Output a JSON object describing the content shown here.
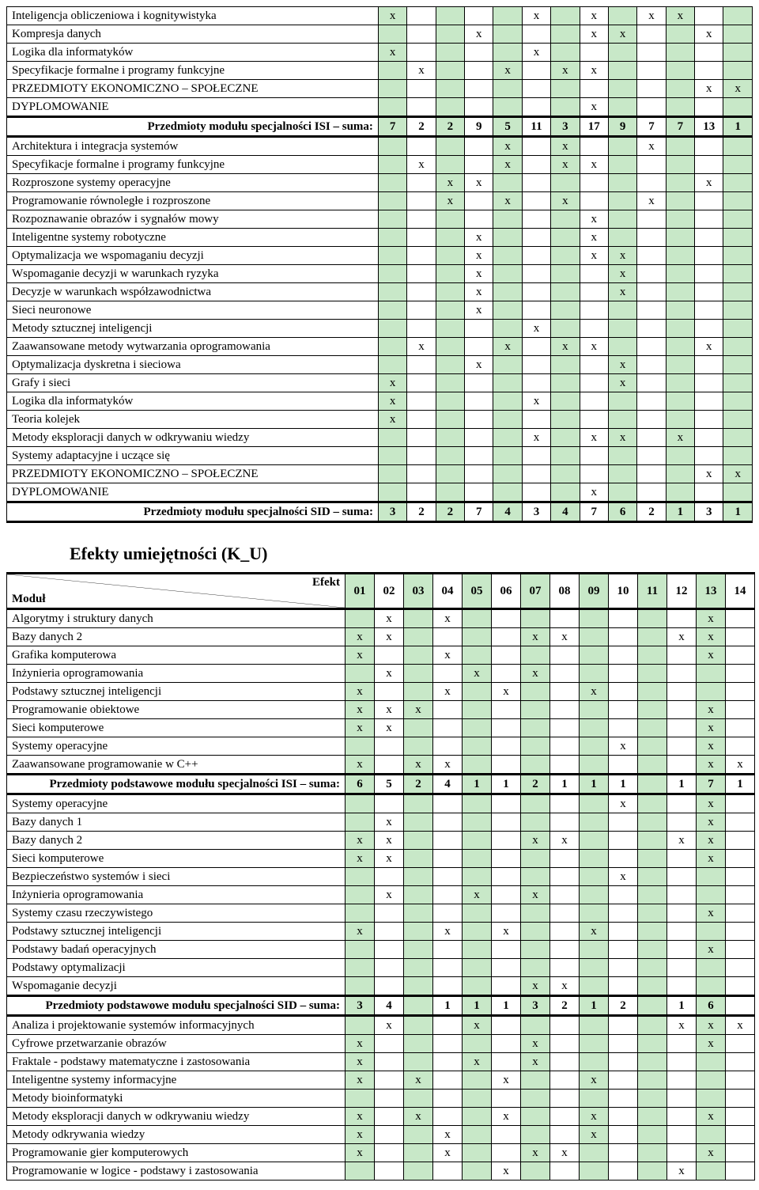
{
  "mark": "x",
  "colors": {
    "alt": "#c8e8c8",
    "bg": "#ffffff",
    "border": "#000000"
  },
  "section_title": "Efekty umiejętności (K_U)",
  "header2": {
    "top_right": "Efekt",
    "bottom_left": "Moduł",
    "cols": [
      "01",
      "02",
      "03",
      "04",
      "05",
      "06",
      "07",
      "08",
      "09",
      "10",
      "11",
      "12",
      "13",
      "14"
    ]
  },
  "table1": {
    "rows": [
      {
        "label": "Inteligencja obliczeniowa i kognitywistyka",
        "marks": [
          1,
          0,
          0,
          0,
          0,
          1,
          0,
          1,
          0,
          1,
          1,
          0,
          0
        ]
      },
      {
        "label": "Kompresja danych",
        "marks": [
          0,
          0,
          0,
          1,
          0,
          0,
          0,
          1,
          1,
          0,
          0,
          1,
          0
        ]
      },
      {
        "label": "Logika dla informatyków",
        "marks": [
          1,
          0,
          0,
          0,
          0,
          1,
          0,
          0,
          0,
          0,
          0,
          0,
          0
        ]
      },
      {
        "label": "Specyfikacje formalne i programy funkcyjne",
        "marks": [
          0,
          1,
          0,
          0,
          1,
          0,
          1,
          1,
          0,
          0,
          0,
          0,
          0
        ]
      },
      {
        "label": "PRZEDMIOTY EKONOMICZNO – SPOŁECZNE",
        "marks": [
          0,
          0,
          0,
          0,
          0,
          0,
          0,
          0,
          0,
          0,
          0,
          1,
          1
        ]
      },
      {
        "label": "DYPLOMOWANIE",
        "marks": [
          0,
          0,
          0,
          0,
          0,
          0,
          0,
          1,
          0,
          0,
          0,
          0,
          0
        ]
      }
    ],
    "sum": {
      "label": "Przedmioty modułu specjalności ISI – suma:",
      "values": [
        "7",
        "2",
        "2",
        "9",
        "5",
        "11",
        "3",
        "17",
        "9",
        "7",
        "7",
        "13",
        "1"
      ]
    },
    "rows2": [
      {
        "label": "Architektura i integracja systemów",
        "marks": [
          0,
          0,
          0,
          0,
          1,
          0,
          1,
          0,
          0,
          1,
          0,
          0,
          0
        ]
      },
      {
        "label": "Specyfikacje formalne i programy funkcyjne",
        "marks": [
          0,
          1,
          0,
          0,
          1,
          0,
          1,
          1,
          0,
          0,
          0,
          0,
          0
        ]
      },
      {
        "label": "Rozproszone systemy operacyjne",
        "marks": [
          0,
          0,
          1,
          1,
          0,
          0,
          0,
          0,
          0,
          0,
          0,
          1,
          0
        ]
      },
      {
        "label": "Programowanie równoległe i rozproszone",
        "marks": [
          0,
          0,
          1,
          0,
          1,
          0,
          1,
          0,
          0,
          1,
          0,
          0,
          0
        ]
      },
      {
        "label": "Rozpoznawanie obrazów i sygnałów mowy",
        "marks": [
          0,
          0,
          0,
          0,
          0,
          0,
          0,
          1,
          0,
          0,
          0,
          0,
          0
        ]
      },
      {
        "label": "Inteligentne systemy robotyczne",
        "marks": [
          0,
          0,
          0,
          1,
          0,
          0,
          0,
          1,
          0,
          0,
          0,
          0,
          0
        ]
      },
      {
        "label": "Optymalizacja we wspomaganiu decyzji",
        "marks": [
          0,
          0,
          0,
          1,
          0,
          0,
          0,
          1,
          1,
          0,
          0,
          0,
          0
        ]
      },
      {
        "label": "Wspomaganie decyzji w warunkach ryzyka",
        "marks": [
          0,
          0,
          0,
          1,
          0,
          0,
          0,
          0,
          1,
          0,
          0,
          0,
          0
        ]
      },
      {
        "label": "Decyzje w warunkach współzawodnictwa",
        "marks": [
          0,
          0,
          0,
          1,
          0,
          0,
          0,
          0,
          1,
          0,
          0,
          0,
          0
        ]
      },
      {
        "label": "Sieci neuronowe",
        "marks": [
          0,
          0,
          0,
          1,
          0,
          0,
          0,
          0,
          0,
          0,
          0,
          0,
          0
        ]
      },
      {
        "label": "Metody sztucznej inteligencji",
        "marks": [
          0,
          0,
          0,
          0,
          0,
          1,
          0,
          0,
          0,
          0,
          0,
          0,
          0
        ]
      },
      {
        "label": "Zaawansowane metody wytwarzania oprogramowania",
        "marks": [
          0,
          1,
          0,
          0,
          1,
          0,
          1,
          1,
          0,
          0,
          0,
          1,
          0
        ]
      },
      {
        "label": "Optymalizacja dyskretna i sieciowa",
        "marks": [
          0,
          0,
          0,
          1,
          0,
          0,
          0,
          0,
          1,
          0,
          0,
          0,
          0
        ]
      },
      {
        "label": "Grafy i sieci",
        "marks": [
          1,
          0,
          0,
          0,
          0,
          0,
          0,
          0,
          1,
          0,
          0,
          0,
          0
        ]
      },
      {
        "label": "Logika dla informatyków",
        "marks": [
          1,
          0,
          0,
          0,
          0,
          1,
          0,
          0,
          0,
          0,
          0,
          0,
          0
        ]
      },
      {
        "label": "Teoria kolejek",
        "marks": [
          1,
          0,
          0,
          0,
          0,
          0,
          0,
          0,
          0,
          0,
          0,
          0,
          0
        ]
      },
      {
        "label": "Metody eksploracji danych w odkrywaniu wiedzy",
        "marks": [
          0,
          0,
          0,
          0,
          0,
          1,
          0,
          1,
          1,
          0,
          1,
          0,
          0
        ]
      },
      {
        "label": "Systemy adaptacyjne i uczące się",
        "marks": [
          0,
          0,
          0,
          0,
          0,
          0,
          0,
          0,
          0,
          0,
          0,
          0,
          0
        ]
      },
      {
        "label": "PRZEDMIOTY EKONOMICZNO – SPOŁECZNE",
        "marks": [
          0,
          0,
          0,
          0,
          0,
          0,
          0,
          0,
          0,
          0,
          0,
          1,
          1
        ]
      },
      {
        "label": "DYPLOMOWANIE",
        "marks": [
          0,
          0,
          0,
          0,
          0,
          0,
          0,
          1,
          0,
          0,
          0,
          0,
          0
        ]
      }
    ],
    "sum2": {
      "label": "Przedmioty modułu specjalności SID – suma:",
      "values": [
        "3",
        "2",
        "2",
        "7",
        "4",
        "3",
        "4",
        "7",
        "6",
        "2",
        "1",
        "3",
        "1"
      ]
    }
  },
  "table2": {
    "rows": [
      {
        "label": "Algorytmy i struktury danych",
        "marks": [
          0,
          1,
          0,
          1,
          0,
          0,
          0,
          0,
          0,
          0,
          0,
          0,
          1,
          0
        ]
      },
      {
        "label": "Bazy danych 2",
        "marks": [
          1,
          1,
          0,
          0,
          0,
          0,
          1,
          1,
          0,
          0,
          0,
          1,
          1,
          0
        ]
      },
      {
        "label": "Grafika komputerowa",
        "marks": [
          1,
          0,
          0,
          1,
          0,
          0,
          0,
          0,
          0,
          0,
          0,
          0,
          1,
          0
        ]
      },
      {
        "label": "Inżynieria oprogramowania",
        "marks": [
          0,
          1,
          0,
          0,
          1,
          0,
          1,
          0,
          0,
          0,
          0,
          0,
          0,
          0
        ]
      },
      {
        "label": "Podstawy sztucznej inteligencji",
        "marks": [
          1,
          0,
          0,
          1,
          0,
          1,
          0,
          0,
          1,
          0,
          0,
          0,
          0,
          0
        ]
      },
      {
        "label": "Programowanie obiektowe",
        "marks": [
          1,
          1,
          1,
          0,
          0,
          0,
          0,
          0,
          0,
          0,
          0,
          0,
          1,
          0
        ]
      },
      {
        "label": "Sieci komputerowe",
        "marks": [
          1,
          1,
          0,
          0,
          0,
          0,
          0,
          0,
          0,
          0,
          0,
          0,
          1,
          0
        ]
      },
      {
        "label": "Systemy operacyjne",
        "marks": [
          0,
          0,
          0,
          0,
          0,
          0,
          0,
          0,
          0,
          1,
          0,
          0,
          1,
          0
        ]
      },
      {
        "label": "Zaawansowane programowanie w C++",
        "marks": [
          1,
          0,
          1,
          1,
          0,
          0,
          0,
          0,
          0,
          0,
          0,
          0,
          1,
          1
        ]
      }
    ],
    "sum": {
      "label": "Przedmioty podstawowe modułu specjalności ISI – suma:",
      "values": [
        "6",
        "5",
        "2",
        "4",
        "1",
        "1",
        "2",
        "1",
        "1",
        "1",
        "",
        "1",
        "7",
        "1"
      ]
    },
    "rows2": [
      {
        "label": "Systemy operacyjne",
        "marks": [
          0,
          0,
          0,
          0,
          0,
          0,
          0,
          0,
          0,
          1,
          0,
          0,
          1,
          0
        ]
      },
      {
        "label": "Bazy danych 1",
        "marks": [
          0,
          1,
          0,
          0,
          0,
          0,
          0,
          0,
          0,
          0,
          0,
          0,
          1,
          0
        ]
      },
      {
        "label": "Bazy danych 2",
        "marks": [
          1,
          1,
          0,
          0,
          0,
          0,
          1,
          1,
          0,
          0,
          0,
          1,
          1,
          0
        ]
      },
      {
        "label": "Sieci komputerowe",
        "marks": [
          1,
          1,
          0,
          0,
          0,
          0,
          0,
          0,
          0,
          0,
          0,
          0,
          1,
          0
        ]
      },
      {
        "label": "Bezpieczeństwo systemów i sieci",
        "marks": [
          0,
          0,
          0,
          0,
          0,
          0,
          0,
          0,
          0,
          1,
          0,
          0,
          0,
          0
        ]
      },
      {
        "label": "Inżynieria oprogramowania",
        "marks": [
          0,
          1,
          0,
          0,
          1,
          0,
          1,
          0,
          0,
          0,
          0,
          0,
          0,
          0
        ]
      },
      {
        "label": "Systemy czasu rzeczywistego",
        "marks": [
          0,
          0,
          0,
          0,
          0,
          0,
          0,
          0,
          0,
          0,
          0,
          0,
          1,
          0
        ]
      },
      {
        "label": "Podstawy sztucznej inteligencji",
        "marks": [
          1,
          0,
          0,
          1,
          0,
          1,
          0,
          0,
          1,
          0,
          0,
          0,
          0,
          0
        ]
      },
      {
        "label": "Podstawy badań operacyjnych",
        "marks": [
          0,
          0,
          0,
          0,
          0,
          0,
          0,
          0,
          0,
          0,
          0,
          0,
          1,
          0
        ]
      },
      {
        "label": "Podstawy optymalizacji",
        "marks": [
          0,
          0,
          0,
          0,
          0,
          0,
          0,
          0,
          0,
          0,
          0,
          0,
          0,
          0
        ]
      },
      {
        "label": "Wspomaganie decyzji",
        "marks": [
          0,
          0,
          0,
          0,
          0,
          0,
          1,
          1,
          0,
          0,
          0,
          0,
          0,
          0
        ]
      }
    ],
    "sum2": {
      "label": "Przedmioty podstawowe modułu specjalności SID – suma:",
      "values": [
        "3",
        "4",
        "",
        "1",
        "1",
        "1",
        "3",
        "2",
        "1",
        "2",
        "",
        "1",
        "6",
        ""
      ]
    },
    "rows3": [
      {
        "label": "Analiza i projektowanie systemów informacyjnych",
        "marks": [
          0,
          1,
          0,
          0,
          1,
          0,
          0,
          0,
          0,
          0,
          0,
          1,
          1,
          1
        ]
      },
      {
        "label": "Cyfrowe przetwarzanie obrazów",
        "marks": [
          1,
          0,
          0,
          0,
          0,
          0,
          1,
          0,
          0,
          0,
          0,
          0,
          1,
          0
        ]
      },
      {
        "label": "Fraktale - podstawy matematyczne i zastosowania",
        "marks": [
          1,
          0,
          0,
          0,
          1,
          0,
          1,
          0,
          0,
          0,
          0,
          0,
          0,
          0
        ]
      },
      {
        "label": "Inteligentne systemy informacyjne",
        "marks": [
          1,
          0,
          1,
          0,
          0,
          1,
          0,
          0,
          1,
          0,
          0,
          0,
          0,
          0
        ]
      },
      {
        "label": "Metody bioinformatyki",
        "marks": [
          0,
          0,
          0,
          0,
          0,
          0,
          0,
          0,
          0,
          0,
          0,
          0,
          0,
          0
        ]
      },
      {
        "label": "Metody eksploracji danych w odkrywaniu wiedzy",
        "marks": [
          1,
          0,
          1,
          0,
          0,
          1,
          0,
          0,
          1,
          0,
          0,
          0,
          1,
          0
        ]
      },
      {
        "label": "Metody odkrywania wiedzy",
        "marks": [
          1,
          0,
          0,
          1,
          0,
          0,
          0,
          0,
          1,
          0,
          0,
          0,
          0,
          0
        ]
      },
      {
        "label": "Programowanie gier komputerowych",
        "marks": [
          1,
          0,
          0,
          1,
          0,
          0,
          1,
          1,
          0,
          0,
          0,
          0,
          1,
          0
        ]
      },
      {
        "label": "Programowanie w logice - podstawy i zastosowania",
        "marks": [
          0,
          0,
          0,
          0,
          0,
          1,
          0,
          0,
          0,
          0,
          0,
          1,
          0,
          0
        ]
      }
    ]
  }
}
